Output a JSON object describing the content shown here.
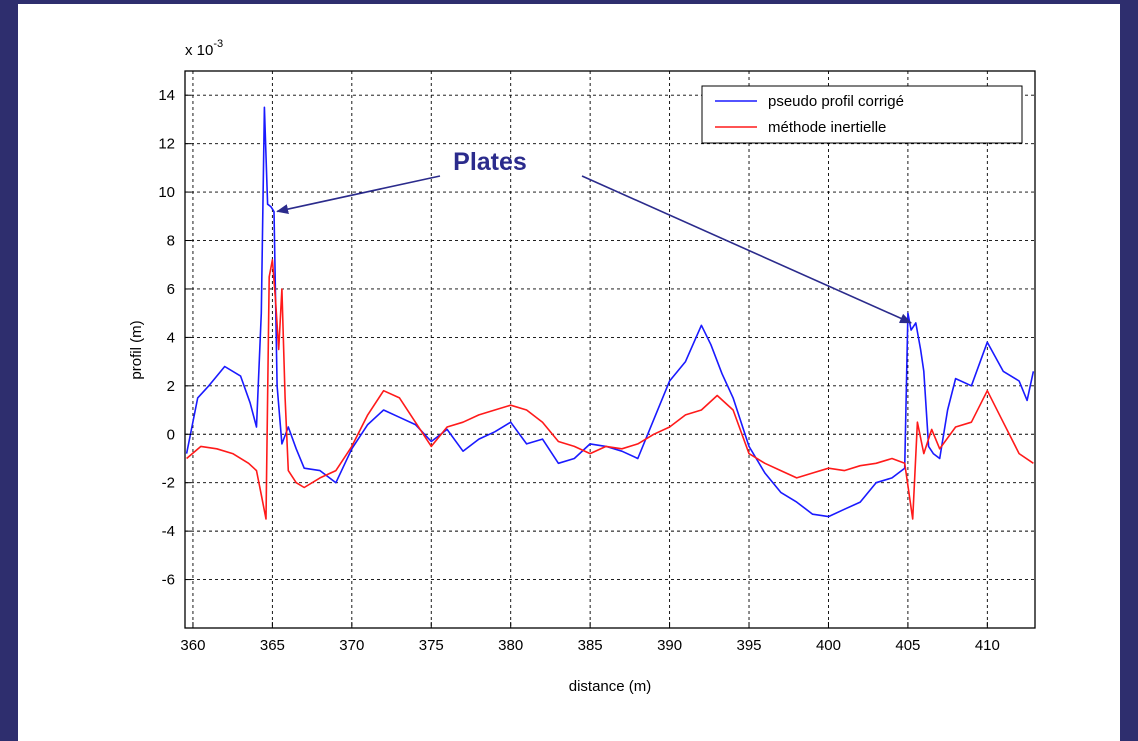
{
  "chart_data": {
    "type": "line",
    "exponent_label": "x 10",
    "exponent_power": "-3",
    "xlabel": "distance (m)",
    "ylabel": "profil (m)",
    "xlim": [
      359.5,
      413
    ],
    "ylim": [
      -8,
      15
    ],
    "x_ticks": [
      360,
      365,
      370,
      375,
      380,
      385,
      390,
      395,
      400,
      405,
      410
    ],
    "y_ticks": [
      -6,
      -4,
      -2,
      0,
      2,
      4,
      6,
      8,
      10,
      12,
      14
    ],
    "x_tick_labels": [
      "360",
      "365",
      "370",
      "375",
      "380",
      "385",
      "390",
      "395",
      "400",
      "405",
      "410"
    ],
    "y_tick_labels": [
      "-6",
      "-4",
      "-2",
      "0",
      "2",
      "4",
      "6",
      "8",
      "10",
      "12",
      "14"
    ],
    "grid": true,
    "legend_position": "top-right",
    "series": [
      {
        "name": "pseudo profil corrigé",
        "color": "#1a1aff",
        "x": [
          359.6,
          360.3,
          361.0,
          362.0,
          363.0,
          363.6,
          364.0,
          364.3,
          364.5,
          364.7,
          364.9,
          365.1,
          365.3,
          365.6,
          366.0,
          366.5,
          367.0,
          368.0,
          369.0,
          370.0,
          371.0,
          372.0,
          373.0,
          374.0,
          375.0,
          376.0,
          377.0,
          378.0,
          379.0,
          380.0,
          381.0,
          382.0,
          383.0,
          384.0,
          385.0,
          386.0,
          387.0,
          388.0,
          389.0,
          390.0,
          391.0,
          392.0,
          392.6,
          393.3,
          394.0,
          395.0,
          396.0,
          397.0,
          398.0,
          399.0,
          400.0,
          401.0,
          402.0,
          403.0,
          404.0,
          404.8,
          405.0,
          405.2,
          405.5,
          405.8,
          406.0,
          406.3,
          406.6,
          407.0,
          407.5,
          408.0,
          409.0,
          410.0,
          411.0,
          412.0,
          412.5,
          412.9
        ],
        "y": [
          -0.8,
          1.5,
          2.0,
          2.8,
          2.4,
          1.3,
          0.3,
          5.0,
          13.5,
          9.5,
          9.4,
          9.2,
          2.0,
          -0.4,
          0.3,
          -0.6,
          -1.4,
          -1.5,
          -2.0,
          -0.6,
          0.4,
          1.0,
          0.7,
          0.4,
          -0.3,
          0.2,
          -0.7,
          -0.2,
          0.1,
          0.5,
          -0.4,
          -0.2,
          -1.2,
          -1.0,
          -0.4,
          -0.5,
          -0.7,
          -1.0,
          0.6,
          2.2,
          3.0,
          4.5,
          3.7,
          2.5,
          1.5,
          -0.5,
          -1.6,
          -2.4,
          -2.8,
          -3.3,
          -3.4,
          -3.1,
          -2.8,
          -2.0,
          -1.8,
          -1.4,
          5.0,
          4.3,
          4.6,
          3.5,
          2.6,
          -0.5,
          -0.8,
          -1.0,
          1.0,
          2.3,
          2.0,
          3.8,
          2.6,
          2.2,
          1.4,
          2.6
        ]
      },
      {
        "name": "méthode inertielle",
        "color": "#ff1a1a",
        "x": [
          359.6,
          360.5,
          361.5,
          362.5,
          363.5,
          364.0,
          364.3,
          364.6,
          364.8,
          365.0,
          365.2,
          365.4,
          365.6,
          365.8,
          366.0,
          366.5,
          367.0,
          368.0,
          369.0,
          370.0,
          371.0,
          372.0,
          373.0,
          374.0,
          375.0,
          376.0,
          377.0,
          378.0,
          379.0,
          380.0,
          381.0,
          382.0,
          383.0,
          384.0,
          385.0,
          386.0,
          387.0,
          388.0,
          389.0,
          390.0,
          391.0,
          392.0,
          393.0,
          394.0,
          395.0,
          396.0,
          397.0,
          398.0,
          399.0,
          400.0,
          401.0,
          402.0,
          403.0,
          404.0,
          404.8,
          405.3,
          405.6,
          406.0,
          406.5,
          407.0,
          408.0,
          409.0,
          410.0,
          411.0,
          412.0,
          412.9
        ],
        "y": [
          -1.0,
          -0.5,
          -0.6,
          -0.8,
          -1.2,
          -1.5,
          -2.5,
          -3.5,
          6.5,
          7.2,
          5.5,
          3.5,
          6.0,
          1.5,
          -1.5,
          -2.0,
          -2.2,
          -1.8,
          -1.5,
          -0.5,
          0.8,
          1.8,
          1.5,
          0.5,
          -0.5,
          0.3,
          0.5,
          0.8,
          1.0,
          1.2,
          1.0,
          0.5,
          -0.3,
          -0.5,
          -0.8,
          -0.5,
          -0.6,
          -0.4,
          0.0,
          0.3,
          0.8,
          1.0,
          1.6,
          1.0,
          -0.8,
          -1.2,
          -1.5,
          -1.8,
          -1.6,
          -1.4,
          -1.5,
          -1.3,
          -1.2,
          -1.0,
          -1.2,
          -3.5,
          0.5,
          -0.8,
          0.2,
          -0.6,
          0.3,
          0.5,
          1.8,
          0.5,
          -0.8,
          -1.2
        ]
      }
    ],
    "annotations": [
      {
        "text": "Plates",
        "arrow_targets": [
          [
            365.3,
            9.2
          ],
          [
            405.2,
            4.6
          ]
        ]
      }
    ]
  }
}
